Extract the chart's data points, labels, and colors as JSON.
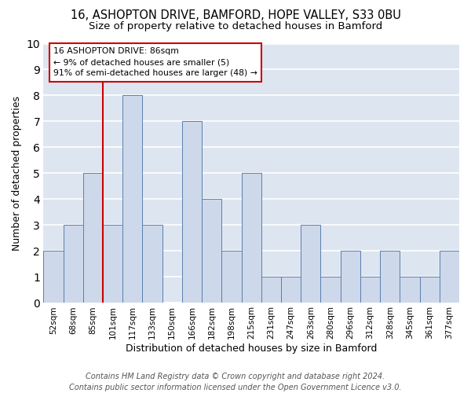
{
  "title1": "16, ASHOPTON DRIVE, BAMFORD, HOPE VALLEY, S33 0BU",
  "title2": "Size of property relative to detached houses in Bamford",
  "xlabel": "Distribution of detached houses by size in Bamford",
  "ylabel": "Number of detached properties",
  "categories": [
    "52sqm",
    "68sqm",
    "85sqm",
    "101sqm",
    "117sqm",
    "133sqm",
    "150sqm",
    "166sqm",
    "182sqm",
    "198sqm",
    "215sqm",
    "231sqm",
    "247sqm",
    "263sqm",
    "280sqm",
    "296sqm",
    "312sqm",
    "328sqm",
    "345sqm",
    "361sqm",
    "377sqm"
  ],
  "values": [
    2,
    3,
    5,
    3,
    8,
    3,
    0,
    7,
    4,
    2,
    5,
    1,
    1,
    3,
    1,
    2,
    1,
    2,
    1,
    1,
    2
  ],
  "bar_color": "#cdd8ea",
  "bar_edge_color": "#5b7faf",
  "subject_bar_index": 2,
  "subject_line_color": "#cc0000",
  "annotation_text": "16 ASHOPTON DRIVE: 86sqm\n← 9% of detached houses are smaller (5)\n91% of semi-detached houses are larger (48) →",
  "annotation_box_color": "#ffffff",
  "annotation_box_edge_color": "#cc0000",
  "ylim": [
    0,
    10
  ],
  "yticks": [
    0,
    1,
    2,
    3,
    4,
    5,
    6,
    7,
    8,
    9,
    10
  ],
  "footnote": "Contains HM Land Registry data © Crown copyright and database right 2024.\nContains public sector information licensed under the Open Government Licence v3.0.",
  "bg_color": "#dde6f0",
  "grid_color": "#ffffff",
  "fig_bg_color": "#ffffff",
  "title1_fontsize": 10.5,
  "title2_fontsize": 9.5,
  "xlabel_fontsize": 9,
  "ylabel_fontsize": 9,
  "footnote_fontsize": 7,
  "tick_fontsize": 7.5
}
